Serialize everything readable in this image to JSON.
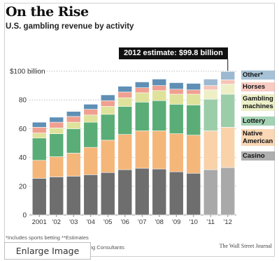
{
  "header": {
    "title": "On the Rise",
    "subtitle": "U.S. gambling revenue by activity"
  },
  "callout": {
    "text": "2012 estimate: $99.8 billion"
  },
  "footer": {
    "footnote": "*Includes sports betting   **Estimates",
    "source": "ning Consultants",
    "publisher": "The Wall Street Journal",
    "enlarge_label": "Enlarge Image"
  },
  "chart_data": {
    "type": "bar",
    "stacked": true,
    "title": "On the Rise",
    "subtitle": "U.S. gambling revenue by activity",
    "categories": [
      "2001",
      "'02",
      "'03",
      "'04",
      "'05",
      "'06",
      "'07",
      "'08",
      "'09",
      "'10",
      "'11",
      "'12"
    ],
    "ylim": [
      0,
      100
    ],
    "yticks": [
      0,
      20,
      40,
      60,
      80,
      100
    ],
    "ytick_labels": [
      "0",
      "20",
      "40",
      "60",
      "80",
      "$100 billion"
    ],
    "grid": "dotted horizontal",
    "legend": "right, labels aligned with the final stacked bar",
    "series": [
      {
        "name": "Casino",
        "color": "#6e6e6e",
        "values": [
          25.5,
          26.5,
          27.0,
          28.0,
          29.5,
          31.5,
          32.5,
          32.0,
          30.0,
          29.0,
          31.5,
          33.0
        ]
      },
      {
        "name": "Native American",
        "color": "#f5b679",
        "values": [
          12.5,
          14.0,
          16.0,
          19.0,
          22.5,
          24.5,
          26.0,
          26.5,
          26.5,
          26.5,
          27.0,
          28.0
        ]
      },
      {
        "name": "Lottery",
        "color": "#5aad76",
        "values": [
          15.5,
          16.0,
          17.0,
          17.5,
          18.0,
          19.5,
          20.0,
          21.0,
          20.5,
          21.0,
          22.0,
          23.0
        ]
      },
      {
        "name": "Gambling machines",
        "color": "#dfe29a",
        "values": [
          3.5,
          4.0,
          4.5,
          5.0,
          5.5,
          6.0,
          6.5,
          7.0,
          7.0,
          7.5,
          6.5,
          7.0
        ]
      },
      {
        "name": "Horses",
        "color": "#f0a090",
        "values": [
          4.0,
          4.0,
          4.0,
          4.0,
          4.0,
          4.0,
          3.5,
          3.5,
          3.5,
          3.0,
          3.0,
          3.0
        ]
      },
      {
        "name": "Other*",
        "color": "#5f8fb5",
        "values": [
          3.5,
          3.5,
          3.5,
          3.5,
          4.0,
          4.0,
          4.0,
          4.5,
          4.5,
          4.5,
          4.5,
          5.8
        ]
      }
    ],
    "estimate_categories": [
      "'11",
      "'12"
    ],
    "estimate_colors": {
      "Casino": "#a9a9a9",
      "Native American": "#f9d2a9",
      "Lottery": "#9ccda9",
      "Gambling machines": "#eeefc6",
      "Horses": "#f5c4b8",
      "Other*": "#9cb9d1"
    },
    "annotation": {
      "text": "2012 estimate: $99.8 billion",
      "category": "'12",
      "value": 99.8
    }
  }
}
